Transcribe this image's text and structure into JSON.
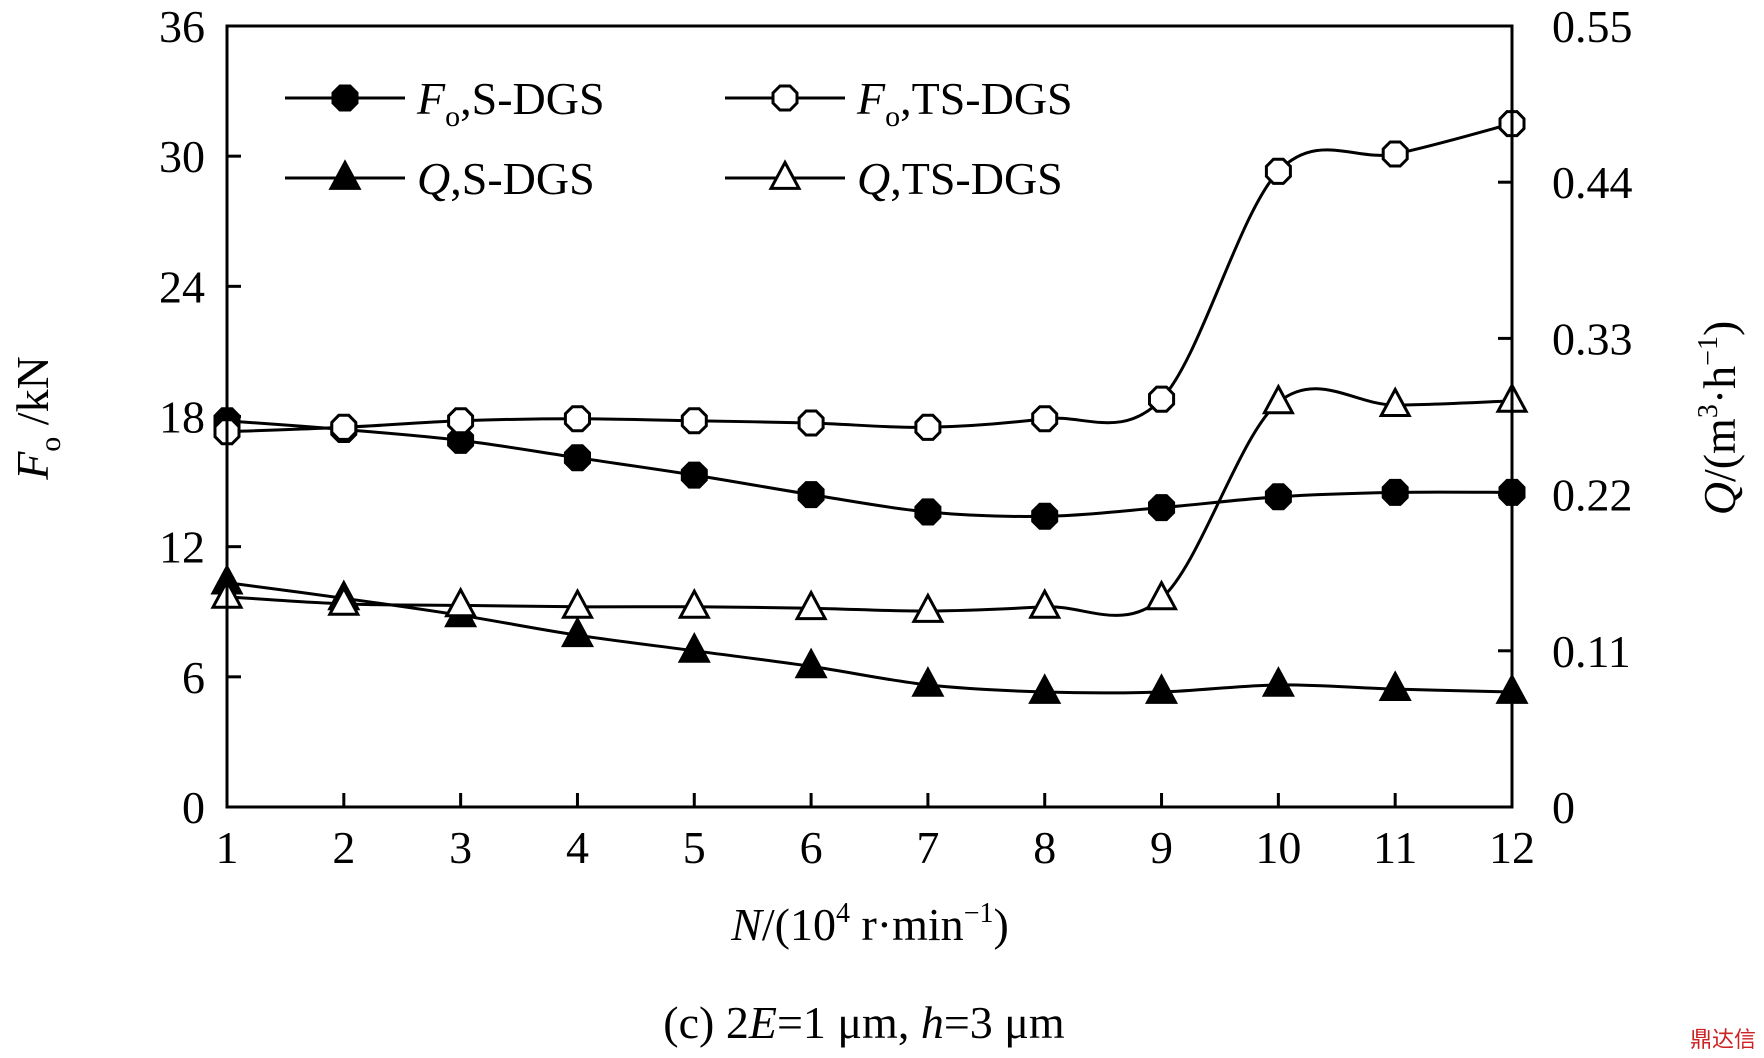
{
  "chart_data": {
    "type": "line",
    "caption": "(c) 2E=1 μm, h=3 μm",
    "xlabel": "N/(10⁴ r·min⁻¹)",
    "ylabel_left": "Fo /kN",
    "ylabel_right": "Q/(m³·h⁻¹)",
    "x": [
      1,
      2,
      3,
      4,
      5,
      6,
      7,
      8,
      9,
      10,
      11,
      12
    ],
    "xlim": [
      1,
      12
    ],
    "ylim_left": [
      0,
      36
    ],
    "ylim_right": [
      0,
      0.55
    ],
    "xticks": [
      "1",
      "2",
      "3",
      "4",
      "5",
      "6",
      "7",
      "8",
      "9",
      "10",
      "11",
      "12"
    ],
    "yticks_left": [
      "0",
      "6",
      "12",
      "18",
      "24",
      "30",
      "36"
    ],
    "yticks_right": [
      "0",
      "0.11",
      "0.22",
      "0.33",
      "0.44",
      "0.55"
    ],
    "series": [
      {
        "name": "Fo,S-DGS",
        "axis": "left",
        "marker": "filled-circle",
        "values": [
          17.8,
          17.4,
          16.9,
          16.1,
          15.3,
          14.4,
          13.6,
          13.4,
          13.8,
          14.3,
          14.5,
          14.5
        ]
      },
      {
        "name": "Fo,TS-DGS",
        "axis": "left",
        "marker": "open-circle",
        "values": [
          17.3,
          17.5,
          17.8,
          17.9,
          17.8,
          17.7,
          17.5,
          17.9,
          18.8,
          29.3,
          30.1,
          31.5
        ]
      },
      {
        "name": "Q,S-DGS",
        "axis": "right",
        "marker": "filled-triangle",
        "values": [
          0.158,
          0.147,
          0.135,
          0.121,
          0.11,
          0.099,
          0.086,
          0.081,
          0.081,
          0.086,
          0.083,
          0.081
        ]
      },
      {
        "name": "Q,TS-DGS",
        "axis": "right",
        "marker": "open-triangle",
        "values": [
          0.148,
          0.143,
          0.142,
          0.141,
          0.141,
          0.14,
          0.138,
          0.141,
          0.147,
          0.285,
          0.283,
          0.286
        ]
      }
    ],
    "legend": {
      "placement": "top-left",
      "labels": [
        {
          "prefix": "F",
          "sub": "o",
          "suffix": ",S-DGS"
        },
        {
          "prefix": "F",
          "sub": "o",
          "suffix": ",TS-DGS"
        },
        {
          "prefix": "Q",
          "sub": "",
          "suffix": ",S-DGS"
        },
        {
          "prefix": "Q",
          "sub": "",
          "suffix": ",TS-DGS"
        }
      ]
    },
    "grid": false
  },
  "watermark": "鼎达信"
}
